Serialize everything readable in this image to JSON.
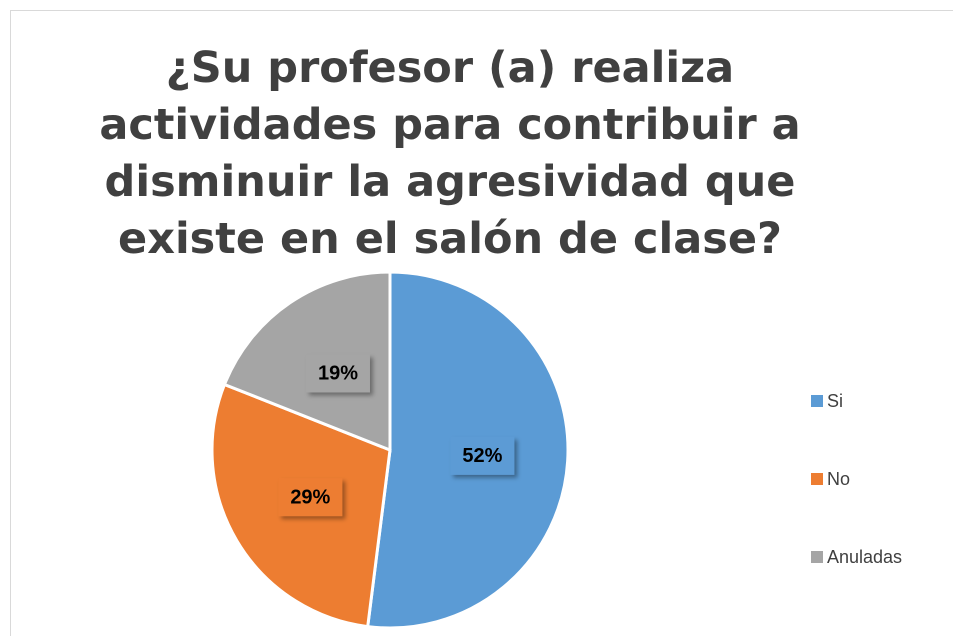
{
  "chart_data": {
    "type": "pie",
    "title": "¿Su profesor (a) realiza actividades para contribuir a disminuir la agresividad que existe en el salón de clase?",
    "categories": [
      "Si",
      "No",
      "Anuladas"
    ],
    "values": [
      52,
      29,
      19
    ],
    "value_labels": [
      "52%",
      "29%",
      "19%"
    ],
    "colors": [
      "#5b9bd5",
      "#ed7d31",
      "#a5a5a5"
    ],
    "legend": "right"
  }
}
